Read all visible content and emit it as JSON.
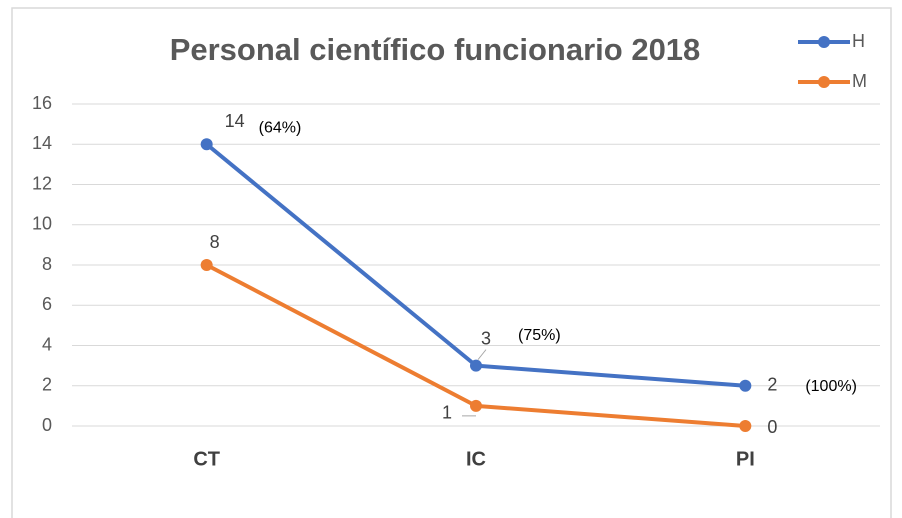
{
  "chart_data": {
    "type": "line",
    "title": "Personal científico funcionario 2018",
    "categories": [
      "CT",
      "IC",
      "PI"
    ],
    "series": [
      {
        "name": "H",
        "color": "#4472c4",
        "values": [
          14,
          3,
          2
        ]
      },
      {
        "name": "M",
        "color": "#ed7d31",
        "values": [
          8,
          1,
          0
        ]
      }
    ],
    "annotations": [
      "(64%)",
      "(75%)",
      "(100%)"
    ],
    "ylim": [
      0,
      16
    ],
    "yticks": [
      0,
      2,
      4,
      6,
      8,
      10,
      12,
      14,
      16
    ],
    "grid": true,
    "legend": "top-right"
  }
}
